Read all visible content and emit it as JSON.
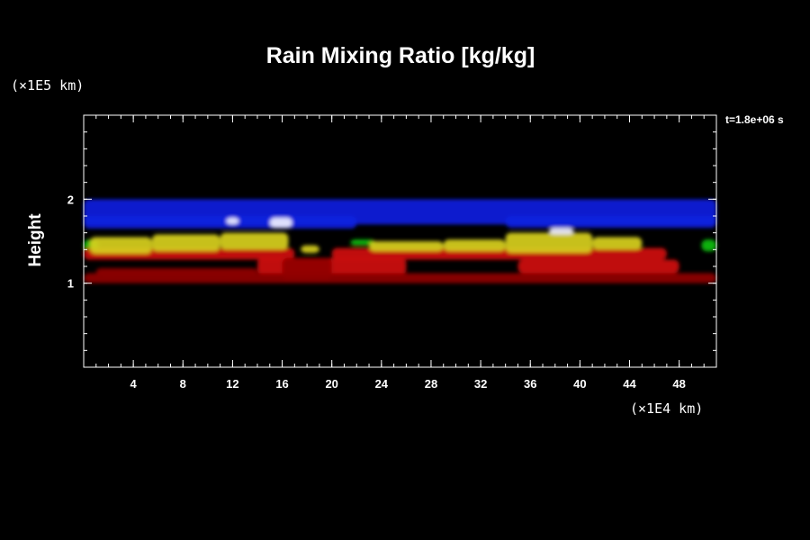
{
  "chart_data": {
    "type": "heatmap",
    "title": "Rain Mixing Ratio [kg/kg]",
    "xlabel": "",
    "ylabel": "Height",
    "x_unit": "(×1E4 km)",
    "y_unit": "(×1E5 km)",
    "time_label": "t=1.8e+06 s",
    "xlim": [
      0,
      51
    ],
    "ylim": [
      0,
      3
    ],
    "x_ticks": [
      4,
      8,
      12,
      16,
      20,
      24,
      28,
      32,
      36,
      40,
      44,
      48
    ],
    "y_ticks": [
      1,
      2
    ],
    "x_minor_step": 1,
    "y_minor_step": 0.2,
    "grid": false,
    "colors": {
      "blue": "#1020e0",
      "yellow": "#d8d020",
      "red": "#d01010",
      "darkred": "#900000",
      "green": "#10c010",
      "white": "#f0f0ff"
    },
    "bands": [
      {
        "color": "blue",
        "x0": 0,
        "x1": 51,
        "y0": 1.7,
        "y1": 2.0
      },
      {
        "color": "blue",
        "x0": 0,
        "x1": 22,
        "y0": 1.65,
        "y1": 1.8
      },
      {
        "color": "blue",
        "x0": 34,
        "x1": 51,
        "y0": 1.66,
        "y1": 1.8
      },
      {
        "color": "green",
        "x0": 0,
        "x1": 1.2,
        "y0": 1.38,
        "y1": 1.52
      },
      {
        "color": "green",
        "x0": 49.8,
        "x1": 51,
        "y0": 1.38,
        "y1": 1.52
      },
      {
        "color": "green",
        "x0": 21.5,
        "x1": 23.5,
        "y0": 1.45,
        "y1": 1.52
      },
      {
        "color": "red",
        "x0": 0,
        "x1": 17,
        "y0": 1.28,
        "y1": 1.42
      },
      {
        "color": "red",
        "x0": 20,
        "x1": 47,
        "y0": 1.28,
        "y1": 1.42
      },
      {
        "color": "red",
        "x0": 14,
        "x1": 26,
        "y0": 1.1,
        "y1": 1.3
      },
      {
        "color": "red",
        "x0": 35,
        "x1": 48,
        "y0": 1.12,
        "y1": 1.28
      },
      {
        "color": "darkred",
        "x0": 0,
        "x1": 51,
        "y0": 1.0,
        "y1": 1.12
      },
      {
        "color": "darkred",
        "x0": 1,
        "x1": 14,
        "y0": 1.1,
        "y1": 1.18
      },
      {
        "color": "darkred",
        "x0": 16,
        "x1": 20,
        "y0": 1.05,
        "y1": 1.3
      },
      {
        "color": "yellow",
        "x0": 0.5,
        "x1": 5.5,
        "y0": 1.35,
        "y1": 1.55
      },
      {
        "color": "yellow",
        "x0": 5.5,
        "x1": 11,
        "y0": 1.38,
        "y1": 1.58
      },
      {
        "color": "yellow",
        "x0": 11,
        "x1": 16.5,
        "y0": 1.4,
        "y1": 1.6
      },
      {
        "color": "yellow",
        "x0": 17.5,
        "x1": 19,
        "y0": 1.36,
        "y1": 1.45
      },
      {
        "color": "yellow",
        "x0": 23,
        "x1": 29,
        "y0": 1.38,
        "y1": 1.5
      },
      {
        "color": "yellow",
        "x0": 29,
        "x1": 34,
        "y0": 1.38,
        "y1": 1.52
      },
      {
        "color": "yellow",
        "x0": 34,
        "x1": 41,
        "y0": 1.36,
        "y1": 1.6
      },
      {
        "color": "yellow",
        "x0": 41,
        "x1": 45,
        "y0": 1.4,
        "y1": 1.55
      },
      {
        "color": "white",
        "x0": 11.5,
        "x1": 12.5,
        "y0": 1.7,
        "y1": 1.78
      },
      {
        "color": "white",
        "x0": 15,
        "x1": 16.8,
        "y0": 1.66,
        "y1": 1.78
      },
      {
        "color": "white",
        "x0": 37.5,
        "x1": 39.5,
        "y0": 1.58,
        "y1": 1.66
      }
    ]
  }
}
